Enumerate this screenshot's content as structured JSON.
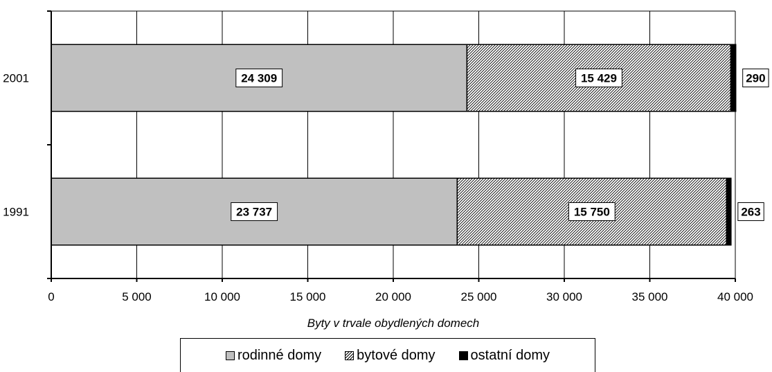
{
  "chart_data": {
    "type": "bar",
    "orientation": "horizontal",
    "stacked": true,
    "categories": [
      "2001",
      "1991"
    ],
    "series": [
      {
        "name": "rodinné domy",
        "values": [
          24309,
          23737
        ],
        "labels": [
          "24 309",
          "23 737"
        ],
        "color": "#c0c0c0",
        "pattern": "solid"
      },
      {
        "name": "bytové domy",
        "values": [
          15429,
          15750
        ],
        "labels": [
          "15 429",
          "15 750"
        ],
        "color": "#000000",
        "pattern": "diagonal-hatch"
      },
      {
        "name": "ostatní domy",
        "values": [
          290,
          263
        ],
        "labels": [
          "290",
          "263"
        ],
        "color": "#000000",
        "pattern": "solid"
      }
    ],
    "xlabel": "Byty v trvale obydlených domech",
    "ylabel": "",
    "xlim": [
      0,
      40000
    ],
    "xticks": [
      0,
      5000,
      10000,
      15000,
      20000,
      25000,
      30000,
      35000,
      40000
    ],
    "xtick_labels": [
      "0",
      "5 000",
      "10 000",
      "15 000",
      "20 000",
      "25 000",
      "30 000",
      "35 000",
      "40 000"
    ],
    "grid": "vertical",
    "legend_position": "bottom"
  },
  "legend": {
    "items": [
      {
        "label": "rodinné domy"
      },
      {
        "label": "bytové domy"
      },
      {
        "label": "ostatní domy"
      }
    ]
  }
}
